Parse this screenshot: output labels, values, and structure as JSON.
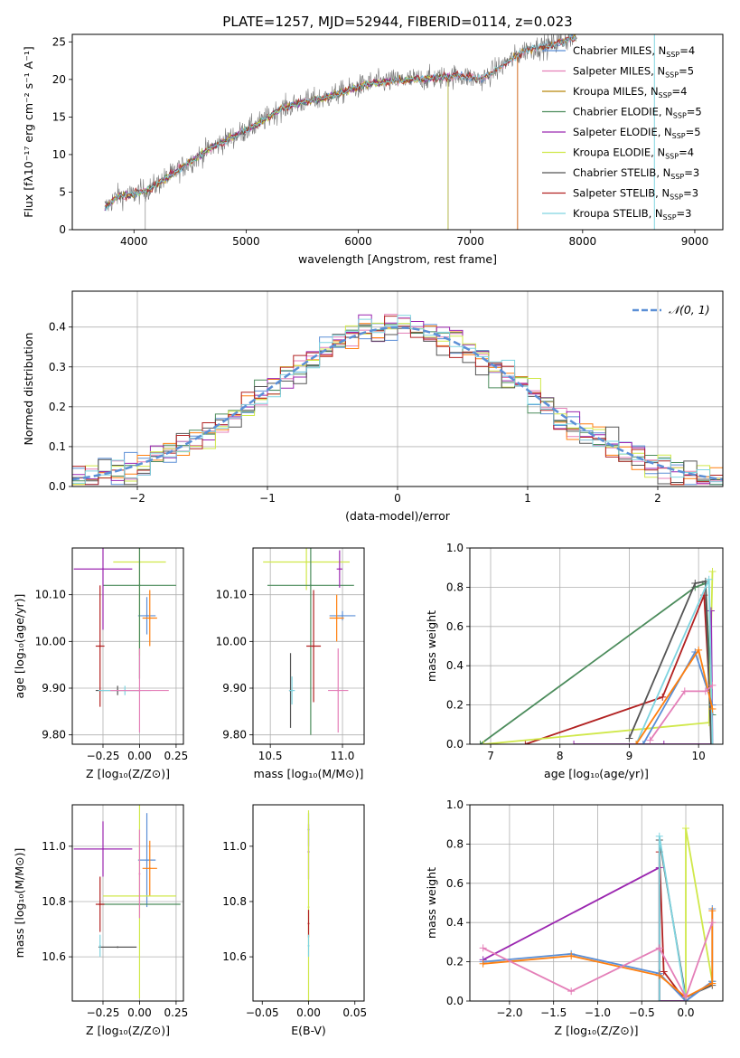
{
  "figure": {
    "title": "PLATE=1257, MJD=52944, FIBERID=0114, z=0.023"
  },
  "chart_data": [
    {
      "id": "spectrum",
      "type": "line",
      "xlabel": "wavelength [Angstrom, rest frame]",
      "ylabel": "Flux [fλ10⁻¹⁷ erg cm⁻² s⁻¹ A⁻¹]",
      "xlim": [
        3450,
        9250
      ],
      "ylim": [
        0,
        26
      ],
      "xticks": [
        4000,
        5000,
        6000,
        7000,
        8000,
        9000
      ],
      "yticks": [
        0,
        5,
        10,
        15,
        20,
        25
      ],
      "grid": false,
      "legend_position": "top-right",
      "data_continuum": {
        "x": [
          3750,
          3850,
          3950,
          4050,
          4150,
          4300,
          4500,
          4700,
          4900,
          5100,
          5300,
          5500,
          5700,
          5900,
          6100,
          6300,
          6500,
          6700,
          6900,
          7100,
          7300,
          7500,
          7700,
          7900
        ],
        "y": [
          3.0,
          4.5,
          4.5,
          5.0,
          5.5,
          7.0,
          9.0,
          11.0,
          12.5,
          14.0,
          16.0,
          17.0,
          17.5,
          18.5,
          19.5,
          19.8,
          20.0,
          20.2,
          20.5,
          20.0,
          22.0,
          24.0,
          24.5,
          25.5
        ]
      },
      "series": [
        {
          "name": "Chabrier MILES, N_SSP=4",
          "color": "#5b8fd6",
          "cutoff": 9300
        },
        {
          "name": "Salpeter MILES, N_SSP=5",
          "color": "#e47fb8",
          "cutoff": 9300
        },
        {
          "name": "Kroupa MILES, N_SSP=4",
          "color": "#b8860b",
          "cutoff": 9300
        },
        {
          "name": "Chabrier ELODIE, N_SSP=5",
          "color": "#4c8c5c",
          "cutoff": 6800
        },
        {
          "name": "Salpeter ELODIE, N_SSP=5",
          "color": "#9b27b0",
          "cutoff": 6800
        },
        {
          "name": "Kroupa ELODIE, N_SSP=4",
          "color": "#d0e84a",
          "cutoff": 6800
        },
        {
          "name": "Chabrier STELIB, N_SSP=3",
          "color": "#555555",
          "cutoff": 9300
        },
        {
          "name": "Salpeter STELIB, N_SSP=3",
          "color": "#b22222",
          "cutoff": 9300
        },
        {
          "name": "Kroupa STELIB, N_SSP=3",
          "color": "#7fd4e0",
          "cutoff": 9300
        }
      ],
      "legend_labels": [
        "Chabrier MILES, N",
        "Salpeter MILES, N",
        "Kroupa MILES, N",
        "Chabrier ELODIE, N",
        "Salpeter ELODIE, N",
        "Kroupa ELODIE, N",
        "Chabrier STELIB, N",
        "Salpeter STELIB, N",
        "Kroupa STELIB, N"
      ],
      "legend_counts": [
        "=4",
        "=5",
        "=4",
        "=5",
        "=5",
        "=4",
        "=3",
        "=3",
        "=3"
      ],
      "legend_sub": "SSP"
    },
    {
      "id": "residuals",
      "type": "area",
      "xlabel": "(data-model)/error",
      "ylabel": "Normed distribution",
      "xlim": [
        -2.5,
        2.5
      ],
      "ylim": [
        0,
        0.49
      ],
      "xticks": [
        -2,
        -1,
        0,
        1,
        2
      ],
      "yticks": [
        0.0,
        0.1,
        0.2,
        0.3,
        0.4
      ],
      "grid": true,
      "legend_position": "top-right",
      "legend_label": "𝒩(0, 1)",
      "bin_width": 0.1,
      "bin_start": -2.5
    },
    {
      "id": "age-Z",
      "type": "scatter",
      "xlabel": "Z [log₁₀(Z/Z⊙)]",
      "ylabel": "age  [log₁₀(age/yr)]",
      "xlim": [
        -0.46,
        0.3
      ],
      "ylim": [
        9.78,
        10.2
      ],
      "xticks": [
        -0.25,
        0.0,
        0.25
      ],
      "xtick_labels": [
        "−0.25",
        "0.00",
        "0.25"
      ],
      "yticks": [
        9.8,
        9.9,
        10.0,
        10.1
      ],
      "grid": true,
      "points": [
        {
          "x": 0.05,
          "y": 10.055,
          "xerr": 0.06,
          "yerr": 0.04,
          "color": "#5b8fd6"
        },
        {
          "x": 0.07,
          "y": 10.05,
          "xerr": 0.05,
          "yerr": 0.06,
          "color": "#ff7f0e"
        },
        {
          "x": 0.0,
          "y": 10.17,
          "xerr": 0.18,
          "yerr": 0.2,
          "color": "#d0e84a"
        },
        {
          "x": 0.0,
          "y": 10.12,
          "xerr": 0.25,
          "yerr": 0.2,
          "color": "#4c8c5c"
        },
        {
          "x": -0.25,
          "y": 10.155,
          "xerr": 0.2,
          "yerr": 0.13,
          "color": "#9b27b0"
        },
        {
          "x": -0.27,
          "y": 9.99,
          "xerr": 0.03,
          "yerr": 0.13,
          "color": "#b22222"
        },
        {
          "x": -0.15,
          "y": 9.895,
          "xerr": 0.15,
          "yerr": 0.01,
          "color": "#555555"
        },
        {
          "x": -0.1,
          "y": 9.895,
          "xerr": 0.18,
          "yerr": 0.01,
          "color": "#7fd4e0"
        },
        {
          "x": 0.0,
          "y": 9.895,
          "xerr": 0.2,
          "yerr": 0.09,
          "color": "#e47fb8"
        }
      ]
    },
    {
      "id": "age-mass",
      "type": "scatter",
      "xlabel": "mass [log₁₀(M/M⊙)]",
      "ylabel": "",
      "xlim": [
        10.38,
        11.15
      ],
      "ylim": [
        9.78,
        10.2
      ],
      "xticks": [
        10.5,
        11.0
      ],
      "yticks": [
        9.8,
        9.9,
        10.0,
        10.1
      ],
      "grid": true,
      "points": [
        {
          "x": 11.0,
          "y": 10.055,
          "xerr": 0.09,
          "yerr": 0.01,
          "color": "#5b8fd6"
        },
        {
          "x": 10.96,
          "y": 10.05,
          "xerr": 0.05,
          "yerr": 0.05,
          "color": "#ff7f0e"
        },
        {
          "x": 10.75,
          "y": 10.17,
          "xerr": 0.3,
          "yerr": 0.06,
          "color": "#d0e84a"
        },
        {
          "x": 10.78,
          "y": 10.12,
          "xerr": 0.3,
          "yerr": 0.32,
          "color": "#4c8c5c"
        },
        {
          "x": 10.98,
          "y": 10.155,
          "xerr": 0.02,
          "yerr": 0.04,
          "color": "#9b27b0"
        },
        {
          "x": 10.8,
          "y": 9.99,
          "xerr": 0.05,
          "yerr": 0.12,
          "color": "#b22222"
        },
        {
          "x": 10.64,
          "y": 9.895,
          "xerr": 0.01,
          "yerr": 0.08,
          "color": "#555555"
        },
        {
          "x": 10.65,
          "y": 9.895,
          "xerr": 0.02,
          "yerr": 0.03,
          "color": "#7fd4e0"
        },
        {
          "x": 10.97,
          "y": 9.895,
          "xerr": 0.07,
          "yerr": 0.09,
          "color": "#e47fb8"
        }
      ]
    },
    {
      "id": "weight-age",
      "type": "line",
      "xlabel": "age  [log₁₀(age/yr)]",
      "ylabel": "mass weight",
      "xlim": [
        6.7,
        10.35
      ],
      "ylim": [
        0,
        1.0
      ],
      "xticks": [
        7,
        8,
        9,
        10
      ],
      "yticks": [
        0.0,
        0.2,
        0.4,
        0.6,
        0.8,
        1.0
      ],
      "grid": true,
      "series": [
        {
          "color": "#4c8c5c",
          "x": [
            6.85,
            9.95,
            10.1,
            10.2
          ],
          "y": [
            0.0,
            0.8,
            0.82,
            0.15
          ]
        },
        {
          "color": "#b22222",
          "x": [
            7.5,
            9.48,
            10.08,
            10.2
          ],
          "y": [
            0.0,
            0.24,
            0.76,
            0.0
          ]
        },
        {
          "color": "#d0e84a",
          "x": [
            6.9,
            10.15,
            10.2
          ],
          "y": [
            0.0,
            0.11,
            0.88
          ]
        },
        {
          "color": "#9b27b0",
          "x": [
            8.2,
            9.5,
            10.2,
            10.18
          ],
          "y": [
            0.0,
            0.0,
            0.0,
            0.68
          ]
        },
        {
          "color": "#555555",
          "x": [
            9.0,
            9.95,
            10.1,
            10.18
          ],
          "y": [
            0.03,
            0.82,
            0.83,
            0.0
          ]
        },
        {
          "color": "#7fd4e0",
          "x": [
            9.1,
            10.15,
            10.2
          ],
          "y": [
            0.0,
            0.84,
            0.0
          ]
        },
        {
          "color": "#5b8fd6",
          "x": [
            9.2,
            9.95,
            10.2
          ],
          "y": [
            0.0,
            0.47,
            0.2
          ]
        },
        {
          "color": "#ff7f0e",
          "x": [
            9.1,
            10.0,
            10.2
          ],
          "y": [
            0.0,
            0.48,
            0.18
          ]
        },
        {
          "color": "#e47fb8",
          "x": [
            9.3,
            9.8,
            10.1,
            10.2
          ],
          "y": [
            0.02,
            0.27,
            0.27,
            0.3
          ]
        }
      ]
    },
    {
      "id": "mass-Z",
      "type": "scatter",
      "xlabel": "Z [log₁₀(Z/Z⊙)]",
      "ylabel": "mass [log₁₀(M/M⊙)]",
      "xlim": [
        -0.46,
        0.3
      ],
      "ylim": [
        10.44,
        11.15
      ],
      "xticks": [
        -0.25,
        0.0,
        0.25
      ],
      "xtick_labels": [
        "−0.25",
        "0.00",
        "0.25"
      ],
      "yticks": [
        10.6,
        10.8,
        11.0
      ],
      "grid": true,
      "points": [
        {
          "x": 0.05,
          "y": 10.95,
          "xerr": 0.06,
          "yerr": 0.17,
          "color": "#5b8fd6"
        },
        {
          "x": 0.07,
          "y": 10.92,
          "xerr": 0.05,
          "yerr": 0.1,
          "color": "#ff7f0e"
        },
        {
          "x": 0.0,
          "y": 10.82,
          "xerr": 0.25,
          "yerr": 0.37,
          "color": "#d0e84a"
        },
        {
          "x": 0.0,
          "y": 10.79,
          "xerr": 0.28,
          "yerr": 0.0,
          "color": "#4c8c5c"
        },
        {
          "x": -0.25,
          "y": 10.99,
          "xerr": 0.2,
          "yerr": 0.1,
          "color": "#9b27b0"
        },
        {
          "x": -0.27,
          "y": 10.79,
          "xerr": 0.03,
          "yerr": 0.1,
          "color": "#b22222"
        },
        {
          "x": -0.15,
          "y": 10.635,
          "xerr": 0.13,
          "yerr": 0.0,
          "color": "#555555"
        },
        {
          "x": -0.27,
          "y": 10.64,
          "xerr": 0.0,
          "yerr": 0.04,
          "color": "#7fd4e0"
        },
        {
          "x": 0.0,
          "y": 10.9,
          "xerr": 0.0,
          "yerr": 0.16,
          "color": "#e47fb8"
        }
      ]
    },
    {
      "id": "mass-EBV",
      "type": "scatter",
      "xlabel": "E(B-V)",
      "ylabel": "",
      "xlim": [
        -0.06,
        0.06
      ],
      "ylim": [
        10.44,
        11.15
      ],
      "xticks": [
        -0.05,
        0.0,
        0.05
      ],
      "xtick_labels": [
        "−0.05",
        "0.00",
        "0.05"
      ],
      "yticks": [
        10.6,
        10.8,
        11.0
      ],
      "grid": false,
      "points": [
        {
          "x": 0.0,
          "y": 11.06,
          "yerr": 0.06,
          "color": "#5b8fd6"
        },
        {
          "x": 0.0,
          "y": 10.98,
          "yerr": 0.1,
          "color": "#9b27b0"
        },
        {
          "x": 0.0,
          "y": 10.78,
          "yerr": 0.35,
          "color": "#d0e84a"
        },
        {
          "x": 0.0,
          "y": 10.72,
          "yerr": 0.05,
          "color": "#b22222"
        },
        {
          "x": 0.0,
          "y": 10.64,
          "yerr": 0.04,
          "color": "#7fd4e0"
        }
      ]
    },
    {
      "id": "weight-Z",
      "type": "line",
      "xlabel": "Z [log₁₀(Z/Z⊙)]",
      "ylabel": "mass weight",
      "xlim": [
        -2.45,
        0.42
      ],
      "ylim": [
        0,
        1.0
      ],
      "xticks": [
        -2.0,
        -1.5,
        -1.0,
        -0.5,
        0.0
      ],
      "xtick_labels": [
        "−2.0",
        "−1.5",
        "−1.0",
        "−0.5",
        "0.0"
      ],
      "yticks": [
        0.0,
        0.2,
        0.4,
        0.6,
        0.8,
        1.0
      ],
      "grid": true,
      "series": [
        {
          "color": "#9b27b0",
          "x": [
            -2.3,
            -0.3,
            -0.3,
            0.0,
            0.3
          ],
          "y": [
            0.21,
            0.68,
            0.0,
            0.0,
            0.1
          ]
        },
        {
          "color": "#b22222",
          "x": [
            -0.3,
            -0.3,
            -0.25,
            0.0
          ],
          "y": [
            0.0,
            0.76,
            0.15,
            0.0
          ]
        },
        {
          "color": "#555555",
          "x": [
            -0.3,
            -0.3,
            0.0,
            0.3
          ],
          "y": [
            0.0,
            0.82,
            0.02,
            0.08
          ]
        },
        {
          "color": "#d0e84a",
          "x": [
            0.0,
            0.0,
            0.3
          ],
          "y": [
            0.0,
            0.88,
            0.1
          ]
        },
        {
          "color": "#7fd4e0",
          "x": [
            -0.3,
            -0.3,
            0.0,
            0.3
          ],
          "y": [
            0.0,
            0.84,
            0.0,
            0.1
          ]
        },
        {
          "color": "#5b8fd6",
          "x": [
            -2.3,
            -1.3,
            -0.3,
            0.0,
            0.3,
            0.3
          ],
          "y": [
            0.2,
            0.24,
            0.14,
            0.0,
            0.1,
            0.47
          ]
        },
        {
          "color": "#ff7f0e",
          "x": [
            -2.3,
            -1.3,
            -0.3,
            0.0,
            0.3,
            0.3
          ],
          "y": [
            0.19,
            0.23,
            0.13,
            0.02,
            0.09,
            0.46
          ]
        },
        {
          "color": "#e47fb8",
          "x": [
            -2.3,
            -1.3,
            -0.3,
            0.0,
            0.3
          ],
          "y": [
            0.27,
            0.05,
            0.27,
            0.02,
            0.4
          ]
        }
      ]
    }
  ]
}
